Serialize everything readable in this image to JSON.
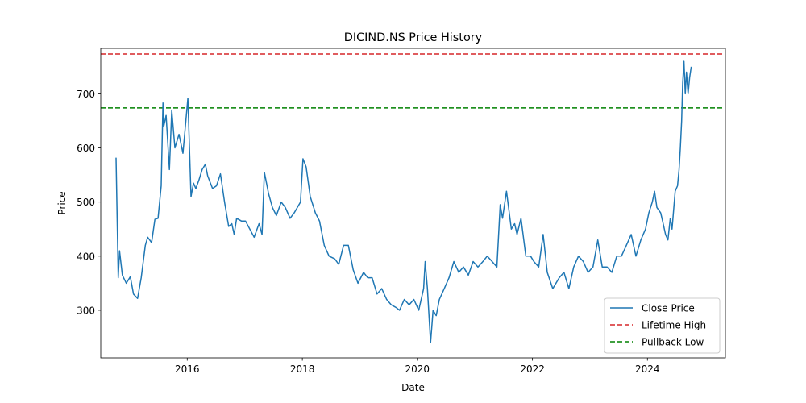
{
  "chart_data": {
    "type": "line",
    "title": "DICIND.NS Price History",
    "xlabel": "Date",
    "ylabel": "Price",
    "xlim": [
      "2014-07-01",
      "2025-05-10"
    ],
    "ylim": [
      212,
      784
    ],
    "x_ticks": [
      "2016-01-01",
      "2018-01-01",
      "2020-01-01",
      "2022-01-01",
      "2024-01-01"
    ],
    "x_tick_labels": [
      "2016",
      "2018",
      "2020",
      "2022",
      "2024"
    ],
    "y_ticks": [
      300,
      400,
      500,
      600,
      700
    ],
    "y_tick_labels": [
      "300",
      "400",
      "500",
      "600",
      "700"
    ],
    "grid": false,
    "legend_position": "lower-right",
    "series": [
      {
        "name": "Close Price",
        "color": "#1f77b4",
        "style": "solid",
        "x": [
          "2014-10-06",
          "2014-10-20",
          "2014-10-28",
          "2014-11-15",
          "2014-12-10",
          "2015-01-05",
          "2015-01-25",
          "2015-02-20",
          "2015-03-15",
          "2015-04-10",
          "2015-04-25",
          "2015-05-20",
          "2015-06-10",
          "2015-06-30",
          "2015-07-20",
          "2015-07-31",
          "2015-08-05",
          "2015-08-20",
          "2015-09-10",
          "2015-09-25",
          "2015-10-15",
          "2015-11-10",
          "2015-12-05",
          "2016-01-05",
          "2016-01-25",
          "2016-02-10",
          "2016-02-25",
          "2016-03-15",
          "2016-04-05",
          "2016-04-25",
          "2016-05-10",
          "2016-06-10",
          "2016-07-05",
          "2016-07-30",
          "2016-08-25",
          "2016-09-20",
          "2016-10-10",
          "2016-10-25",
          "2016-11-10",
          "2016-12-10",
          "2017-01-05",
          "2017-02-01",
          "2017-03-01",
          "2017-04-01",
          "2017-04-20",
          "2017-05-05",
          "2017-06-01",
          "2017-06-25",
          "2017-07-20",
          "2017-08-20",
          "2017-09-15",
          "2017-10-15",
          "2017-11-10",
          "2017-12-20",
          "2018-01-05",
          "2018-01-25",
          "2018-02-20",
          "2018-03-25",
          "2018-04-20",
          "2018-05-20",
          "2018-06-20",
          "2018-07-25",
          "2018-08-20",
          "2018-09-20",
          "2018-10-20",
          "2018-11-20",
          "2018-12-20",
          "2019-01-25",
          "2019-02-20",
          "2019-03-20",
          "2019-04-20",
          "2019-05-20",
          "2019-06-20",
          "2019-07-20",
          "2019-08-20",
          "2019-09-10",
          "2019-10-10",
          "2019-11-10",
          "2019-12-10",
          "2020-01-10",
          "2020-02-10",
          "2020-02-20",
          "2020-03-05",
          "2020-03-25",
          "2020-04-10",
          "2020-04-30",
          "2020-05-20",
          "2020-06-20",
          "2020-07-20",
          "2020-08-20",
          "2020-09-20",
          "2020-10-20",
          "2020-11-20",
          "2020-12-20",
          "2021-01-20",
          "2021-02-20",
          "2021-03-20",
          "2021-04-20",
          "2021-05-20",
          "2021-06-10",
          "2021-06-25",
          "2021-07-20",
          "2021-08-20",
          "2021-09-10",
          "2021-09-25",
          "2021-10-20",
          "2021-11-20",
          "2021-12-20",
          "2022-01-10",
          "2022-02-10",
          "2022-03-10",
          "2022-04-05",
          "2022-05-10",
          "2022-06-20",
          "2022-07-20",
          "2022-08-20",
          "2022-09-20",
          "2022-10-20",
          "2022-11-20",
          "2022-12-20",
          "2023-01-20",
          "2023-02-20",
          "2023-03-20",
          "2023-04-20",
          "2023-05-20",
          "2023-06-20",
          "2023-07-20",
          "2023-08-20",
          "2023-09-20",
          "2023-10-20",
          "2023-11-20",
          "2023-12-20",
          "2024-01-10",
          "2024-02-01",
          "2024-02-15",
          "2024-03-01",
          "2024-03-25",
          "2024-04-10",
          "2024-04-25",
          "2024-05-10",
          "2024-05-25",
          "2024-06-05",
          "2024-06-25",
          "2024-07-10",
          "2024-07-20",
          "2024-07-28",
          "2024-08-05",
          "2024-08-12",
          "2024-08-20",
          "2024-08-28",
          "2024-09-05",
          "2024-09-15",
          "2024-09-25",
          "2024-10-05"
        ],
        "y": [
          582,
          360,
          410,
          365,
          350,
          362,
          330,
          322,
          360,
          420,
          435,
          425,
          468,
          470,
          530,
          683,
          640,
          660,
          560,
          670,
          600,
          625,
          590,
          692,
          510,
          535,
          525,
          540,
          560,
          570,
          548,
          525,
          530,
          552,
          500,
          455,
          460,
          440,
          470,
          465,
          465,
          450,
          435,
          460,
          440,
          555,
          515,
          490,
          475,
          500,
          490,
          470,
          480,
          500,
          580,
          565,
          510,
          480,
          465,
          420,
          400,
          395,
          385,
          420,
          420,
          375,
          350,
          370,
          360,
          360,
          330,
          340,
          320,
          310,
          305,
          300,
          320,
          310,
          320,
          300,
          340,
          390,
          340,
          240,
          300,
          290,
          320,
          340,
          360,
          390,
          370,
          380,
          365,
          390,
          380,
          390,
          400,
          390,
          380,
          495,
          470,
          520,
          450,
          460,
          440,
          470,
          400,
          400,
          390,
          380,
          440,
          370,
          340,
          360,
          370,
          340,
          380,
          400,
          390,
          370,
          380,
          430,
          380,
          380,
          370,
          400,
          400,
          420,
          440,
          400,
          430,
          450,
          480,
          500,
          520,
          490,
          480,
          460,
          440,
          430,
          470,
          450,
          520,
          530,
          560,
          600,
          650,
          720,
          760,
          700,
          740,
          700,
          730,
          750
        ]
      },
      {
        "name": "Lifetime High",
        "color": "#d62728",
        "style": "dashed",
        "y_value": 773.6
      },
      {
        "name": "Pullback Low",
        "color": "#008000",
        "style": "dashed",
        "y_value": 673.9
      }
    ]
  }
}
